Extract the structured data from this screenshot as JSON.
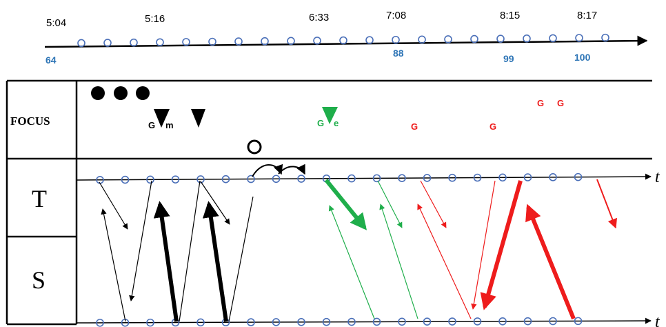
{
  "colors": {
    "ink": "#000000",
    "ring": "#4a6fb8",
    "turn_number": "#2e75b6",
    "green": "#1fae4b",
    "red": "#ee1c1c"
  },
  "timeline": {
    "time_labels": [
      "5:04",
      "5:16",
      "6:33",
      "7:08",
      "8:15",
      "8:17"
    ],
    "turn_numbers": [
      "64",
      "88",
      "99",
      "100"
    ]
  },
  "focus_row": {
    "label": "FOCUS",
    "items": [
      {
        "kind": "filled-circle",
        "color": "black"
      },
      {
        "kind": "filled-circle",
        "color": "black"
      },
      {
        "kind": "filled-circle",
        "color": "black"
      },
      {
        "kind": "triangle-down",
        "color": "black",
        "left_letter": "G",
        "right_letter": "m"
      },
      {
        "kind": "triangle-down",
        "color": "black"
      },
      {
        "kind": "open-circle",
        "color": "black"
      },
      {
        "kind": "triangle-down",
        "color": "green",
        "left_letter": "G",
        "right_letter": "e"
      },
      {
        "kind": "letter",
        "color": "red",
        "text": "G"
      },
      {
        "kind": "letter",
        "color": "red",
        "text": "G"
      },
      {
        "kind": "letter",
        "color": "red",
        "text": "G"
      },
      {
        "kind": "letter",
        "color": "red",
        "text": "G"
      }
    ]
  },
  "rows": {
    "teacher_label": "T",
    "student_label": "S",
    "axis_label_top": "t",
    "axis_label_bottom": "t"
  }
}
